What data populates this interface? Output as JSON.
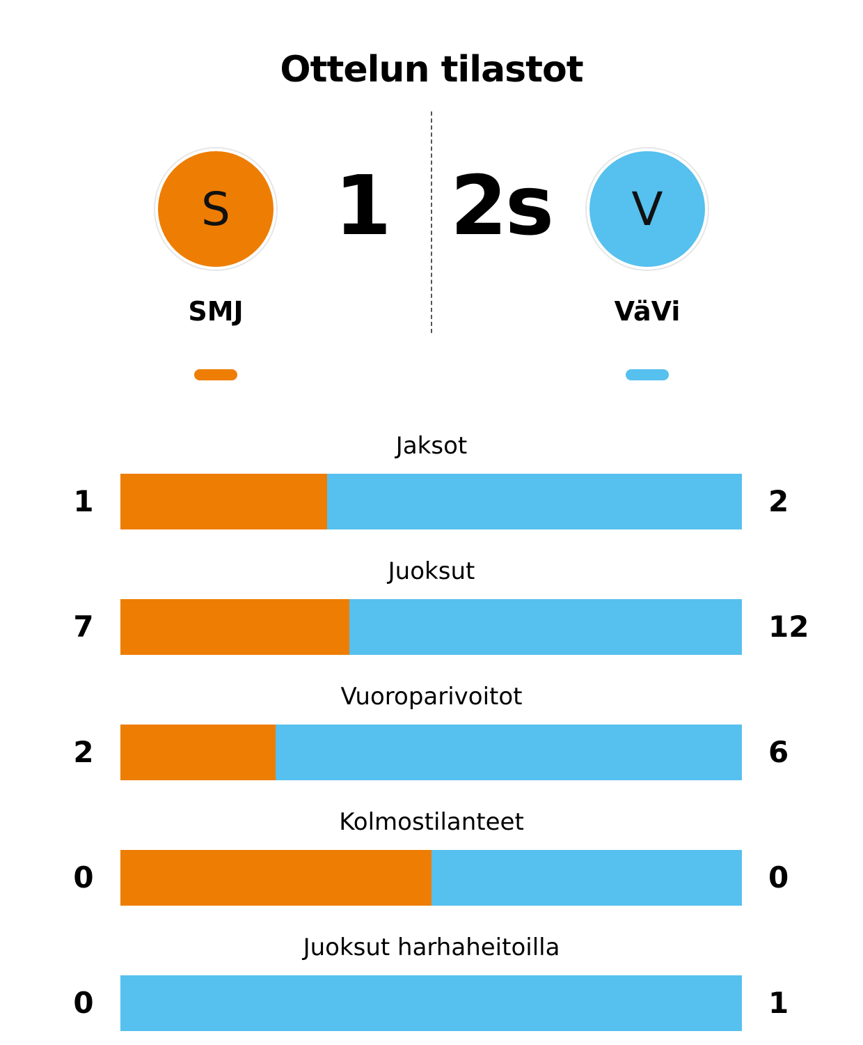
{
  "title": "Ottelun tilastot",
  "colors": {
    "home": "#ee7d03",
    "away": "#56c0ee"
  },
  "home": {
    "initial": "S",
    "name": "SMJ",
    "score": "1"
  },
  "away": {
    "initial": "V",
    "name": "VäVi",
    "score": "2s"
  },
  "chart_data": {
    "type": "bar",
    "orientation": "horizontal-stacked-share",
    "series": [
      {
        "name": "SMJ",
        "values": [
          1,
          7,
          2,
          0,
          0
        ]
      },
      {
        "name": "VäVi",
        "values": [
          2,
          12,
          6,
          0,
          1
        ]
      }
    ],
    "categories": [
      "Jaksot",
      "Juoksut",
      "Vuoroparivoitot",
      "Kolmostilanteet",
      "Juoksut harhaheitoilla"
    ]
  },
  "stats": [
    {
      "label": "Jaksot",
      "home": "1",
      "away": "2",
      "home_share": 0.333
    },
    {
      "label": "Juoksut",
      "home": "7",
      "away": "12",
      "home_share": 0.368
    },
    {
      "label": "Vuoroparivoitot",
      "home": "2",
      "away": "6",
      "home_share": 0.25
    },
    {
      "label": "Kolmostilanteet",
      "home": "0",
      "away": "0",
      "home_share": 0.5
    },
    {
      "label": "Juoksut harhaheitoilla",
      "home": "0",
      "away": "1",
      "home_share": 0.0
    }
  ]
}
